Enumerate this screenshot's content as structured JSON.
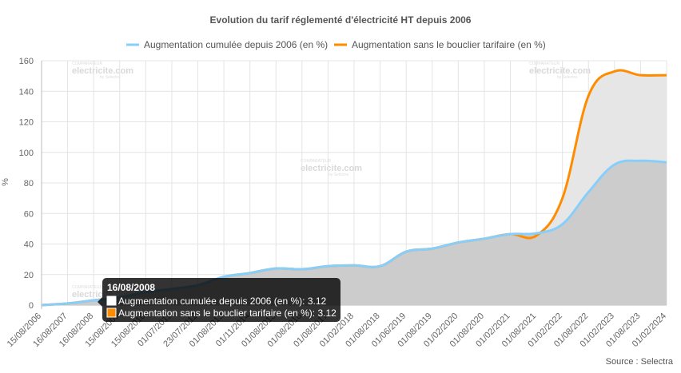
{
  "chart_data": {
    "type": "line",
    "title": "Evolution du tarif réglementé d'électricité HT depuis 2006",
    "ylabel": "%",
    "ylim": [
      0,
      160
    ],
    "yticks": [
      0,
      20,
      40,
      60,
      80,
      100,
      120,
      140,
      160
    ],
    "grid": true,
    "legend_position": "top",
    "categories": [
      "15/08/2006",
      "16/08/2007",
      "16/08/2008",
      "15/08/2009",
      "15/08/2010",
      "01/07/2011",
      "23/07/2012",
      "01/08/2013",
      "01/11/2014",
      "01/08/2015",
      "01/08/2016",
      "01/08/2017",
      "01/02/2018",
      "01/08/2018",
      "01/06/2019",
      "01/08/2019",
      "01/02/2020",
      "01/08/2020",
      "01/02/2021",
      "01/08/2021",
      "01/02/2022",
      "01/08/2022",
      "01/02/2023",
      "01/08/2023",
      "01/02/2024"
    ],
    "tick_labels": [
      "15/08/2006",
      "16/08/2007",
      "16/08/2008",
      "15/08/2009",
      "15/08/2010",
      "01/07/2011",
      "23/07/2012",
      "01/08/2013",
      "01/11/2014",
      "01/08/2015",
      "01/08/2016",
      "01/08/2017",
      "01/02/2018",
      "01/08/2018",
      "01/06/2019",
      "01/08/2019",
      "01/02/2020",
      "01/08/2020",
      "01/02/2021",
      "01/08/2021",
      "01/02/2022",
      "01/08/2022",
      "01/02/2023",
      "01/08/2023",
      "01/02/2024"
    ],
    "series": [
      {
        "name": "Augmentation cumulée depuis 2006 (en %)",
        "color": "#87cefa",
        "fill": "#cccccc",
        "values": [
          0,
          1.1,
          3.12,
          5,
          8.5,
          10.5,
          13,
          18.5,
          21,
          24,
          23.5,
          25.5,
          26,
          25.5,
          35,
          37,
          41,
          43.5,
          46.5,
          47,
          53,
          74,
          92,
          94.5,
          93.5
        ]
      },
      {
        "name": "Augmentation sans le bouclier tarifaire (en %)",
        "color": "#ff8c00",
        "fill": "#e6e6e6",
        "values": [
          0,
          1.1,
          3.12,
          5,
          8.5,
          10.5,
          13,
          18.5,
          21,
          24,
          23.5,
          25.5,
          26,
          25.5,
          35,
          37,
          41,
          43.5,
          46.5,
          45.5,
          70,
          137,
          153,
          150.5,
          150.5
        ]
      }
    ],
    "tooltip": {
      "title": "16/08/2008",
      "lines": [
        "Augmentation cumulée depuis 2006 (en %): 3.12",
        "Augmentation sans le bouclier tarifaire (en %): 3.12"
      ],
      "colors": [
        "#ffffff",
        "#ff8c00"
      ]
    },
    "source": "Source : Selectra",
    "watermark": {
      "tagline": "COMPARATEUR",
      "brand": "electricite.com",
      "sub": "by Selectra"
    }
  }
}
